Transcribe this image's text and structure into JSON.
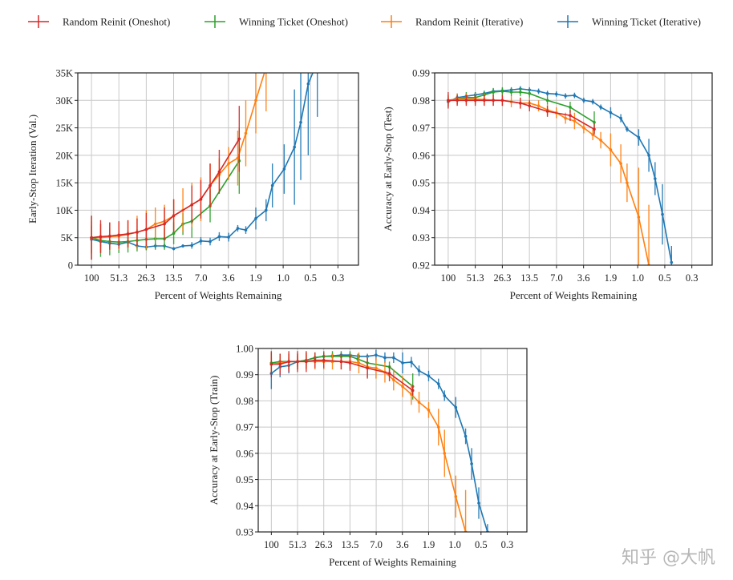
{
  "legend": [
    {
      "label": "Random Reinit (Oneshot)",
      "color": "#d62728"
    },
    {
      "label": "Winning Ticket (Oneshot)",
      "color": "#2ca02c"
    },
    {
      "label": "Random Reinit (Iterative)",
      "color": "#ff7f0e"
    },
    {
      "label": "Winning Ticket (Iterative)",
      "color": "#1f77b4"
    }
  ],
  "watermark": "知乎 @大帆",
  "chart_data": [
    {
      "type": "line",
      "xlabel": "Percent of Weights Remaining",
      "ylabel": "Early-Stop Iteration (Val.)",
      "x_scale": "log",
      "x_ticks": [
        "100",
        "51.3",
        "26.3",
        "13.5",
        "7.0",
        "3.6",
        "1.9",
        "1.0",
        "0.5",
        "0.3"
      ],
      "y_ticks": [
        {
          "v": 0,
          "label": "0"
        },
        {
          "v": 5000,
          "label": "5K"
        },
        {
          "v": 10000,
          "label": "10K"
        },
        {
          "v": 15000,
          "label": "15K"
        },
        {
          "v": 20000,
          "label": "20K"
        },
        {
          "v": 25000,
          "label": "25K"
        },
        {
          "v": 30000,
          "label": "30K"
        },
        {
          "v": 35000,
          "label": "35K"
        }
      ],
      "ylim": [
        0,
        35000
      ],
      "grid": true,
      "series": [
        {
          "name": "Winning Ticket (Iterative)",
          "color": "#1f77b4",
          "x": [
            100,
            80,
            64,
            51.2,
            41,
            32.8,
            26.2,
            21,
            16.8,
            13.4,
            10.7,
            8.6,
            6.9,
            5.5,
            4.4,
            3.5,
            2.8,
            2.3,
            1.8,
            1.4,
            1.2,
            0.9,
            0.7,
            0.6,
            0.5,
            0.4
          ],
          "y": [
            4700,
            4300,
            4000,
            3800,
            4200,
            3500,
            3300,
            3500,
            3500,
            3000,
            3500,
            3600,
            4400,
            4300,
            5200,
            5100,
            6700,
            6400,
            8500,
            10000,
            14500,
            17500,
            21500,
            26000,
            33000,
            37000
          ],
          "err": [
            2500,
            1000,
            800,
            700,
            800,
            500,
            500,
            500,
            400,
            300,
            300,
            600,
            700,
            700,
            800,
            800,
            600,
            700,
            2000,
            2000,
            4000,
            4500,
            10500,
            10500,
            13000,
            10000
          ]
        },
        {
          "name": "Winning Ticket (Oneshot)",
          "color": "#2ca02c",
          "x": [
            100,
            80,
            64,
            51.2,
            41,
            32.8,
            26.2,
            21,
            16.8,
            13.4,
            10.7,
            8.6,
            5.5,
            2.7
          ],
          "y": [
            5000,
            4500,
            4300,
            4200,
            4300,
            4500,
            4700,
            4800,
            4800,
            5800,
            7500,
            8000,
            10800,
            19000
          ],
          "err": [
            4000,
            3000,
            2500,
            2000,
            2000,
            2000,
            2000,
            2000,
            2000,
            2000,
            2000,
            3000,
            3000,
            6000
          ]
        },
        {
          "name": "Random Reinit (Iterative)",
          "color": "#ff7f0e",
          "x": [
            100,
            80,
            64,
            51.2,
            41,
            32.8,
            26.2,
            21,
            16.8,
            13.4,
            10.7,
            8.6,
            6.9,
            5.5,
            4.4,
            3.5,
            2.8,
            2.3,
            1.8,
            1.4
          ],
          "y": [
            5000,
            5000,
            5200,
            5300,
            5600,
            6000,
            6500,
            7500,
            8000,
            9000,
            10000,
            11000,
            12000,
            14500,
            16500,
            18500,
            19500,
            24000,
            30000,
            36000
          ],
          "err": [
            3000,
            2500,
            2500,
            2500,
            2500,
            3000,
            3500,
            3000,
            3000,
            3000,
            4000,
            4000,
            4000,
            4000,
            3000,
            3000,
            5000,
            6000,
            6000,
            8000
          ]
        },
        {
          "name": "Random Reinit (Oneshot)",
          "color": "#d62728",
          "x": [
            100,
            80,
            64,
            51.2,
            41,
            32.8,
            26.2,
            16.8,
            13.4,
            8.6,
            6.9,
            5.5,
            4.4,
            2.7
          ],
          "y": [
            5000,
            5200,
            5300,
            5500,
            5700,
            6000,
            6500,
            7500,
            9000,
            11000,
            12000,
            14500,
            17000,
            23000
          ],
          "err": [
            4000,
            3000,
            2500,
            2500,
            2500,
            2500,
            3000,
            3000,
            3000,
            3500,
            3500,
            4000,
            4000,
            6000
          ]
        }
      ]
    },
    {
      "type": "line",
      "xlabel": "Percent of Weights Remaining",
      "ylabel": "Accuracy at Early-Stop (Test)",
      "x_scale": "log",
      "x_ticks": [
        "100",
        "51.3",
        "26.3",
        "13.5",
        "7.0",
        "3.6",
        "1.9",
        "1.0",
        "0.5",
        "0.3"
      ],
      "y_ticks": [
        {
          "v": 0.92,
          "label": "0.92"
        },
        {
          "v": 0.93,
          "label": "0.93"
        },
        {
          "v": 0.94,
          "label": "0.94"
        },
        {
          "v": 0.95,
          "label": "0.95"
        },
        {
          "v": 0.96,
          "label": "0.96"
        },
        {
          "v": 0.97,
          "label": "0.97"
        },
        {
          "v": 0.98,
          "label": "0.98"
        },
        {
          "v": 0.99,
          "label": "0.99"
        }
      ],
      "ylim": [
        0.92,
        0.99
      ],
      "grid": true,
      "series": [
        {
          "name": "Winning Ticket (Iterative)",
          "color": "#1f77b4",
          "x": [
            100,
            80,
            64,
            51.2,
            41,
            32.8,
            26.2,
            21,
            16.8,
            13.4,
            10.7,
            8.6,
            6.9,
            5.5,
            4.4,
            3.5,
            2.8,
            2.3,
            1.8,
            1.4,
            1.2,
            0.9,
            0.7,
            0.6,
            0.5,
            0.4
          ],
          "y": [
            0.9795,
            0.981,
            0.9815,
            0.982,
            0.9825,
            0.9833,
            0.9835,
            0.9838,
            0.9842,
            0.9838,
            0.9833,
            0.9825,
            0.9823,
            0.9816,
            0.9818,
            0.98,
            0.9795,
            0.9775,
            0.9755,
            0.9735,
            0.9695,
            0.9665,
            0.96,
            0.9515,
            0.9385,
            0.921
          ],
          "err": [
            0.002,
            0.001,
            0.001,
            0.001,
            0.001,
            0.001,
            0.001,
            0.001,
            0.001,
            0.001,
            0.001,
            0.001,
            0.001,
            0.001,
            0.001,
            0.001,
            0.001,
            0.001,
            0.002,
            0.0015,
            0.001,
            0.003,
            0.006,
            0.006,
            0.011,
            0.006
          ]
        },
        {
          "name": "Winning Ticket (Oneshot)",
          "color": "#2ca02c",
          "x": [
            100,
            80,
            64,
            51.2,
            41,
            32.8,
            26.2,
            21,
            16.8,
            13.4,
            8.6,
            4.9,
            2.7
          ],
          "y": [
            0.98,
            0.9805,
            0.981,
            0.981,
            0.982,
            0.983,
            0.9833,
            0.983,
            0.983,
            0.9825,
            0.98,
            0.9775,
            0.972
          ],
          "err": [
            0.002,
            0.002,
            0.002,
            0.002,
            0.0015,
            0.0015,
            0.0015,
            0.0015,
            0.0015,
            0.0015,
            0.0015,
            0.002,
            0.004
          ]
        },
        {
          "name": "Random Reinit (Iterative)",
          "color": "#ff7f0e",
          "x": [
            100,
            80,
            64,
            51.2,
            41,
            32.8,
            26.2,
            21,
            16.8,
            13.4,
            10.7,
            8.6,
            6.9,
            5.5,
            4.4,
            3.5,
            2.8,
            2.3,
            1.8,
            1.4,
            1.2,
            0.9,
            0.7
          ],
          "y": [
            0.98,
            0.9805,
            0.9805,
            0.9805,
            0.9803,
            0.9801,
            0.98,
            0.9795,
            0.979,
            0.979,
            0.978,
            0.9765,
            0.9755,
            0.9735,
            0.9725,
            0.97,
            0.9675,
            0.9655,
            0.962,
            0.957,
            0.95,
            0.9375,
            0.92
          ],
          "err": [
            0.002,
            0.002,
            0.002,
            0.002,
            0.002,
            0.002,
            0.002,
            0.002,
            0.002,
            0.002,
            0.002,
            0.002,
            0.002,
            0.002,
            0.003,
            0.002,
            0.002,
            0.003,
            0.006,
            0.007,
            0.007,
            0.018,
            0.022
          ]
        },
        {
          "name": "Random Reinit (Oneshot)",
          "color": "#d62728",
          "x": [
            100,
            80,
            64,
            51.2,
            41,
            32.8,
            26.2,
            16.8,
            13.4,
            8.6,
            4.9,
            2.7
          ],
          "y": [
            0.98,
            0.98,
            0.98,
            0.98,
            0.98,
            0.98,
            0.98,
            0.979,
            0.978,
            0.976,
            0.9745,
            0.9695
          ],
          "err": [
            0.003,
            0.002,
            0.002,
            0.002,
            0.002,
            0.002,
            0.002,
            0.002,
            0.002,
            0.002,
            0.002,
            0.002
          ]
        }
      ]
    },
    {
      "type": "line",
      "xlabel": "Percent of Weights Remaining",
      "ylabel": "Accuracy at Early-Stop (Train)",
      "x_scale": "log",
      "x_ticks": [
        "100",
        "51.3",
        "26.3",
        "13.5",
        "7.0",
        "3.6",
        "1.9",
        "1.0",
        "0.5",
        "0.3"
      ],
      "y_ticks": [
        {
          "v": 0.93,
          "label": "0.93"
        },
        {
          "v": 0.94,
          "label": "0.94"
        },
        {
          "v": 0.95,
          "label": "0.95"
        },
        {
          "v": 0.96,
          "label": "0.96"
        },
        {
          "v": 0.97,
          "label": "0.97"
        },
        {
          "v": 0.98,
          "label": "0.98"
        },
        {
          "v": 0.99,
          "label": "0.99"
        },
        {
          "v": 1.0,
          "label": "1.00"
        }
      ],
      "ylim": [
        0.93,
        1.0
      ],
      "grid": true,
      "series": [
        {
          "name": "Winning Ticket (Iterative)",
          "color": "#1f77b4",
          "x": [
            100,
            80,
            64,
            51.2,
            41,
            32.8,
            26.2,
            21,
            16.8,
            13.4,
            10.7,
            8.6,
            6.9,
            5.5,
            4.4,
            3.5,
            2.8,
            2.3,
            1.8,
            1.4,
            1.2,
            0.9,
            0.7,
            0.6,
            0.5,
            0.4
          ],
          "y": [
            0.9905,
            0.993,
            0.9935,
            0.995,
            0.9955,
            0.9965,
            0.997,
            0.9972,
            0.9975,
            0.9975,
            0.997,
            0.997,
            0.9975,
            0.9965,
            0.9965,
            0.9945,
            0.9948,
            0.9915,
            0.9895,
            0.9865,
            0.982,
            0.9775,
            0.9665,
            0.956,
            0.941,
            0.93
          ],
          "err": [
            0.006,
            0.004,
            0.003,
            0.002,
            0.002,
            0.0015,
            0.001,
            0.001,
            0.001,
            0.001,
            0.001,
            0.001,
            0.002,
            0.002,
            0.002,
            0.004,
            0.002,
            0.002,
            0.002,
            0.002,
            0.002,
            0.004,
            0.003,
            0.006,
            0.006,
            0.003
          ]
        },
        {
          "name": "Winning Ticket (Oneshot)",
          "color": "#2ca02c",
          "x": [
            100,
            80,
            64,
            51.2,
            41,
            32.8,
            26.2,
            21,
            16.8,
            13.4,
            11,
            8.6,
            4.9,
            2.7
          ],
          "y": [
            0.9945,
            0.995,
            0.995,
            0.995,
            0.9955,
            0.9965,
            0.997,
            0.997,
            0.997,
            0.997,
            0.996,
            0.9945,
            0.993,
            0.9855
          ],
          "err": [
            0.004,
            0.003,
            0.003,
            0.003,
            0.003,
            0.002,
            0.002,
            0.002,
            0.002,
            0.002,
            0.002,
            0.002,
            0.002,
            0.005
          ]
        },
        {
          "name": "Random Reinit (Iterative)",
          "color": "#ff7f0e",
          "x": [
            100,
            80,
            64,
            51.2,
            41,
            32.8,
            26.2,
            21,
            16.8,
            13.4,
            10.7,
            8.6,
            6.9,
            5.5,
            4.4,
            3.5,
            2.8,
            2.3,
            1.8,
            1.4,
            1.2,
            0.9,
            0.7
          ],
          "y": [
            0.994,
            0.9945,
            0.995,
            0.995,
            0.995,
            0.995,
            0.995,
            0.995,
            0.995,
            0.995,
            0.9945,
            0.993,
            0.9925,
            0.991,
            0.988,
            0.9855,
            0.9825,
            0.9795,
            0.9765,
            0.97,
            0.96,
            0.9435,
            0.93
          ],
          "err": [
            0.003,
            0.003,
            0.003,
            0.003,
            0.003,
            0.003,
            0.003,
            0.003,
            0.003,
            0.003,
            0.004,
            0.004,
            0.004,
            0.004,
            0.004,
            0.004,
            0.004,
            0.004,
            0.003,
            0.007,
            0.009,
            0.008,
            0.016
          ]
        },
        {
          "name": "Random Reinit (Oneshot)",
          "color": "#d62728",
          "x": [
            100,
            80,
            64,
            51.2,
            41,
            32.8,
            26.2,
            16.8,
            13.4,
            8.6,
            4.9,
            2.7
          ],
          "y": [
            0.994,
            0.994,
            0.995,
            0.995,
            0.995,
            0.9955,
            0.9955,
            0.995,
            0.9945,
            0.9925,
            0.9905,
            0.984
          ],
          "err": [
            0.005,
            0.004,
            0.004,
            0.004,
            0.004,
            0.003,
            0.003,
            0.003,
            0.003,
            0.004,
            0.003,
            0.002
          ]
        }
      ]
    }
  ]
}
